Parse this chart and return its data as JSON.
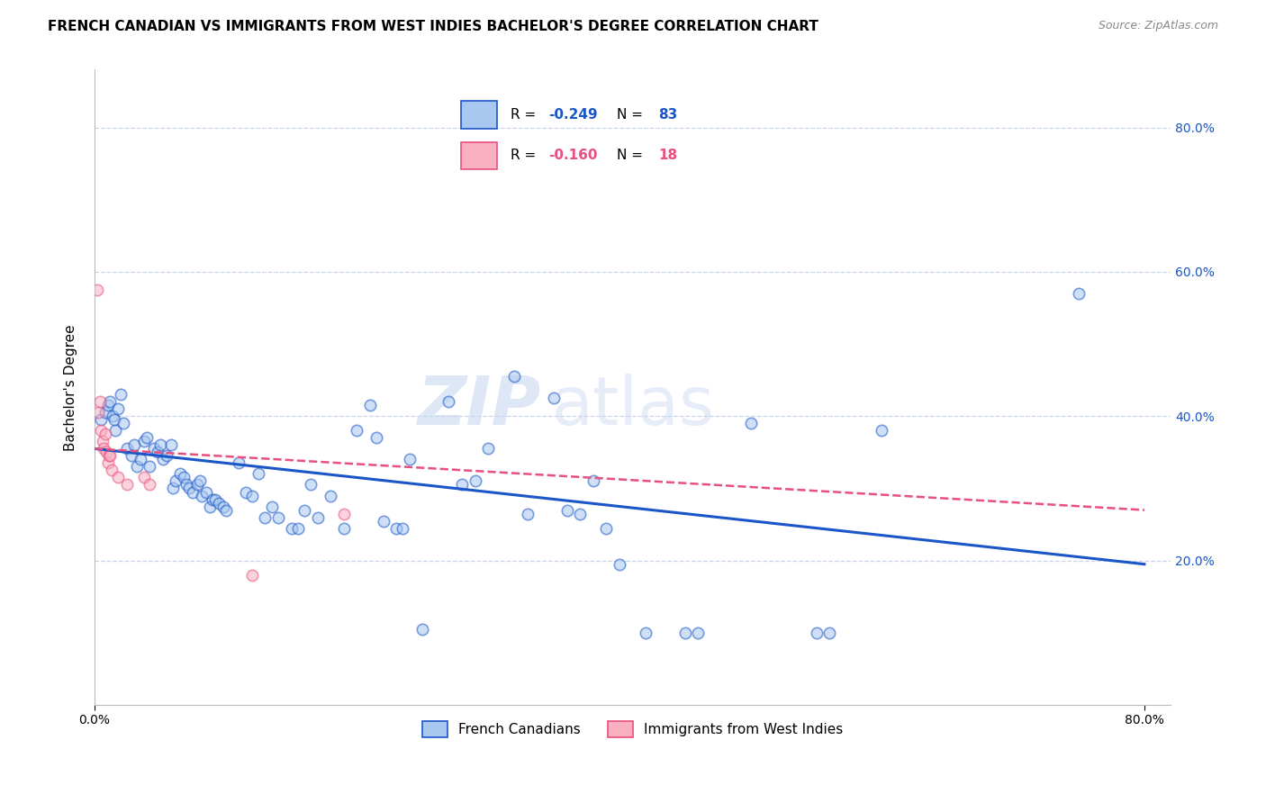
{
  "title": "FRENCH CANADIAN VS IMMIGRANTS FROM WEST INDIES BACHELOR'S DEGREE CORRELATION CHART",
  "source": "Source: ZipAtlas.com",
  "ylabel": "Bachelor's Degree",
  "legend_bottom": [
    "French Canadians",
    "Immigrants from West Indies"
  ],
  "blue_scatter": [
    [
      0.005,
      0.395
    ],
    [
      0.008,
      0.405
    ],
    [
      0.01,
      0.415
    ],
    [
      0.012,
      0.42
    ],
    [
      0.014,
      0.4
    ],
    [
      0.015,
      0.395
    ],
    [
      0.016,
      0.38
    ],
    [
      0.018,
      0.41
    ],
    [
      0.02,
      0.43
    ],
    [
      0.022,
      0.39
    ],
    [
      0.025,
      0.355
    ],
    [
      0.028,
      0.345
    ],
    [
      0.03,
      0.36
    ],
    [
      0.032,
      0.33
    ],
    [
      0.035,
      0.34
    ],
    [
      0.038,
      0.365
    ],
    [
      0.04,
      0.37
    ],
    [
      0.042,
      0.33
    ],
    [
      0.045,
      0.355
    ],
    [
      0.048,
      0.35
    ],
    [
      0.05,
      0.36
    ],
    [
      0.052,
      0.34
    ],
    [
      0.055,
      0.345
    ],
    [
      0.058,
      0.36
    ],
    [
      0.06,
      0.3
    ],
    [
      0.062,
      0.31
    ],
    [
      0.065,
      0.32
    ],
    [
      0.068,
      0.315
    ],
    [
      0.07,
      0.305
    ],
    [
      0.072,
      0.3
    ],
    [
      0.075,
      0.295
    ],
    [
      0.078,
      0.305
    ],
    [
      0.08,
      0.31
    ],
    [
      0.082,
      0.29
    ],
    [
      0.085,
      0.295
    ],
    [
      0.088,
      0.275
    ],
    [
      0.09,
      0.285
    ],
    [
      0.092,
      0.285
    ],
    [
      0.095,
      0.28
    ],
    [
      0.098,
      0.275
    ],
    [
      0.1,
      0.27
    ],
    [
      0.11,
      0.335
    ],
    [
      0.115,
      0.295
    ],
    [
      0.12,
      0.29
    ],
    [
      0.125,
      0.32
    ],
    [
      0.13,
      0.26
    ],
    [
      0.135,
      0.275
    ],
    [
      0.14,
      0.26
    ],
    [
      0.15,
      0.245
    ],
    [
      0.155,
      0.245
    ],
    [
      0.16,
      0.27
    ],
    [
      0.165,
      0.305
    ],
    [
      0.17,
      0.26
    ],
    [
      0.18,
      0.29
    ],
    [
      0.19,
      0.245
    ],
    [
      0.2,
      0.38
    ],
    [
      0.21,
      0.415
    ],
    [
      0.215,
      0.37
    ],
    [
      0.22,
      0.255
    ],
    [
      0.23,
      0.245
    ],
    [
      0.235,
      0.245
    ],
    [
      0.24,
      0.34
    ],
    [
      0.25,
      0.105
    ],
    [
      0.27,
      0.42
    ],
    [
      0.28,
      0.305
    ],
    [
      0.29,
      0.31
    ],
    [
      0.3,
      0.355
    ],
    [
      0.32,
      0.455
    ],
    [
      0.33,
      0.265
    ],
    [
      0.35,
      0.425
    ],
    [
      0.36,
      0.27
    ],
    [
      0.37,
      0.265
    ],
    [
      0.38,
      0.31
    ],
    [
      0.39,
      0.245
    ],
    [
      0.4,
      0.195
    ],
    [
      0.42,
      0.1
    ],
    [
      0.45,
      0.1
    ],
    [
      0.46,
      0.1
    ],
    [
      0.5,
      0.39
    ],
    [
      0.55,
      0.1
    ],
    [
      0.56,
      0.1
    ],
    [
      0.6,
      0.38
    ],
    [
      0.75,
      0.57
    ]
  ],
  "pink_scatter": [
    [
      0.002,
      0.575
    ],
    [
      0.003,
      0.405
    ],
    [
      0.004,
      0.42
    ],
    [
      0.005,
      0.38
    ],
    [
      0.006,
      0.365
    ],
    [
      0.007,
      0.355
    ],
    [
      0.008,
      0.375
    ],
    [
      0.009,
      0.35
    ],
    [
      0.01,
      0.335
    ],
    [
      0.011,
      0.345
    ],
    [
      0.012,
      0.345
    ],
    [
      0.013,
      0.325
    ],
    [
      0.018,
      0.315
    ],
    [
      0.025,
      0.305
    ],
    [
      0.038,
      0.315
    ],
    [
      0.042,
      0.305
    ],
    [
      0.12,
      0.18
    ],
    [
      0.19,
      0.265
    ]
  ],
  "blue_line": {
    "x0": 0.0,
    "y0": 0.355,
    "x1": 0.8,
    "y1": 0.195
  },
  "pink_line": {
    "x0": 0.0,
    "y0": 0.355,
    "x1": 0.8,
    "y1": 0.27
  },
  "scatter_blue_color": "#a8c8f0",
  "scatter_pink_color": "#f8b0c0",
  "line_blue_color": "#1a56c8",
  "line_pink_color": "#e85080",
  "grid_color": "#c8d4e8",
  "bg_color": "#ffffff",
  "title_fontsize": 11,
  "source_fontsize": 9,
  "xlim": [
    0.0,
    0.82
  ],
  "ylim": [
    0.0,
    0.88
  ],
  "yticks": [
    0.2,
    0.4,
    0.6,
    0.8
  ],
  "scatter_size": 80,
  "scatter_alpha": 0.55,
  "scatter_linewidth": 1.2,
  "legend_r1": "-0.249",
  "legend_n1": "83",
  "legend_r2": "-0.160",
  "legend_n2": "18"
}
